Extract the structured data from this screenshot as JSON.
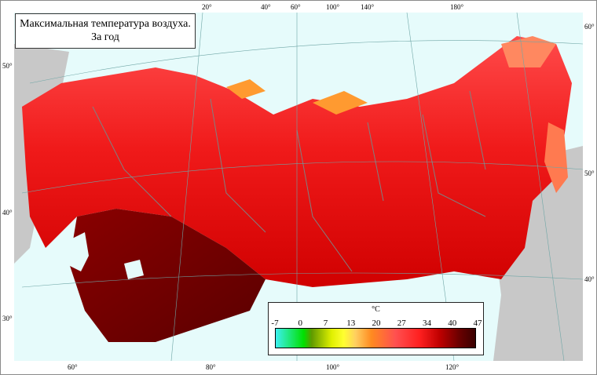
{
  "title": {
    "line1": "Максимальная температура воздуха.",
    "line2": "За год"
  },
  "legend": {
    "unit": "°C",
    "ticks": [
      "-7",
      "0",
      "7",
      "13",
      "20",
      "27",
      "34",
      "40",
      "47"
    ]
  },
  "graticule": {
    "top": [
      "20°",
      "40°",
      "60°",
      "100°",
      "140°",
      "180°"
    ],
    "bottom": [
      "60°",
      "80°",
      "100°",
      "120°"
    ],
    "left": [
      "50°",
      "40°",
      "30°"
    ],
    "right": [
      "60°",
      "50°",
      "40°"
    ]
  },
  "colors": {
    "sea": "#dff7f7",
    "foreign_land": "#c8c8c8",
    "hot": "#7a0000",
    "warm": "#e01010",
    "cool": "#ff7a50"
  }
}
